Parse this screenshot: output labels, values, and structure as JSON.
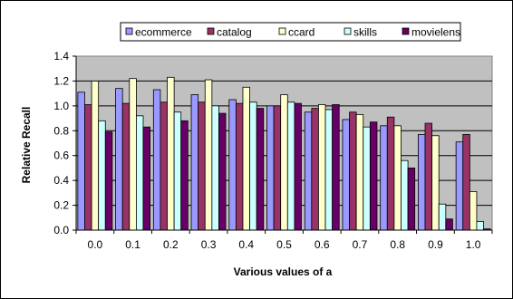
{
  "chart_data": {
    "type": "bar",
    "title": "",
    "xlabel": "Various values of a",
    "ylabel": "Relative  Recall",
    "ylim": [
      0,
      1.4
    ],
    "yticks": [
      "0.0",
      "0.2",
      "0.4",
      "0.6",
      "0.8",
      "1.0",
      "1.2",
      "1.4"
    ],
    "grid": true,
    "legend_position": "top",
    "plot_background": "#c0c0c0",
    "categories": [
      "0.0",
      "0.1",
      "0.2",
      "0.3",
      "0.4",
      "0.5",
      "0.6",
      "0.7",
      "0.8",
      "0.9",
      "1.0"
    ],
    "series": [
      {
        "name": "ecommerce",
        "color": "#9999ff",
        "values": [
          1.11,
          1.14,
          1.13,
          1.09,
          1.05,
          1.0,
          0.95,
          0.89,
          0.84,
          0.77,
          0.71
        ]
      },
      {
        "name": "catalog",
        "color": "#993366",
        "values": [
          1.01,
          1.02,
          1.03,
          1.03,
          1.02,
          1.0,
          0.98,
          0.95,
          0.91,
          0.86,
          0.77
        ]
      },
      {
        "name": "ccard",
        "color": "#ffffcc",
        "values": [
          1.2,
          1.22,
          1.23,
          1.21,
          1.15,
          1.09,
          1.01,
          0.93,
          0.84,
          0.76,
          0.31
        ]
      },
      {
        "name": "skills",
        "color": "#ccffff",
        "values": [
          0.88,
          0.92,
          0.95,
          1.0,
          1.03,
          1.03,
          0.97,
          0.83,
          0.56,
          0.21,
          0.07
        ]
      },
      {
        "name": "movielens",
        "color": "#660066",
        "values": [
          0.79,
          0.83,
          0.88,
          0.94,
          0.98,
          1.02,
          1.01,
          0.87,
          0.5,
          0.09,
          0.01
        ]
      }
    ]
  }
}
